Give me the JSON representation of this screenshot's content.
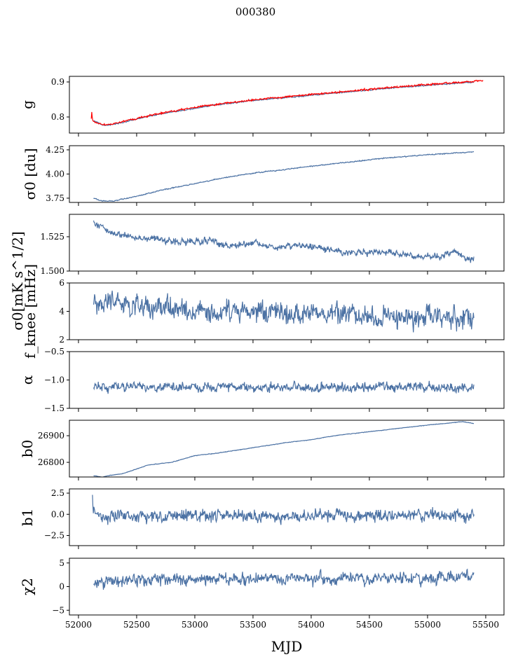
{
  "title": "000380",
  "chart_data": {
    "type": "line",
    "xlabel": "MJD",
    "xlim": [
      51922,
      55657
    ],
    "xticks": [
      52000,
      52500,
      53000,
      53500,
      54000,
      54500,
      55000,
      55500
    ],
    "xtick_labels": [
      "52000",
      "52500",
      "53000",
      "53500",
      "54000",
      "54500",
      "55000",
      "55500"
    ],
    "colors": {
      "main": "#4c72a4",
      "red": "#ff0000"
    },
    "panels": [
      {
        "ylabel": "g",
        "ylim": [
          0.754,
          0.916
        ],
        "yticks": [
          0.8,
          0.9
        ],
        "ytick_labels": [
          "0.8",
          "0.9"
        ],
        "series": [
          {
            "name": "g",
            "color": "#4c72a4",
            "noise": 0.001,
            "x": [
              52130,
              52200,
              52250,
              52400,
              52600,
              52800,
              53000,
              53200,
              53500,
              53800,
              54000,
              54300,
              54600,
              54900,
              55200,
              55400
            ],
            "y": [
              0.79,
              0.778,
              0.776,
              0.786,
              0.802,
              0.814,
              0.825,
              0.835,
              0.847,
              0.856,
              0.862,
              0.871,
              0.88,
              0.888,
              0.895,
              0.899
            ]
          },
          {
            "name": "g_ref",
            "color": "#ff0000",
            "noise": 0.0015,
            "x": [
              52110,
              52115,
              52120,
              52140,
              52200,
              52250,
              52400,
              52600,
              52800,
              53000,
              53200,
              53500,
              53800,
              54000,
              54300,
              54600,
              54900,
              55200,
              55400,
              55480
            ],
            "y": [
              0.795,
              0.82,
              0.79,
              0.785,
              0.779,
              0.777,
              0.788,
              0.804,
              0.816,
              0.827,
              0.837,
              0.849,
              0.858,
              0.864,
              0.873,
              0.882,
              0.89,
              0.897,
              0.902,
              0.904
            ]
          }
        ]
      },
      {
        "ylabel": "σ0 [du]",
        "ylim": [
          3.706,
          4.293
        ],
        "yticks": [
          3.75,
          4.0,
          4.25
        ],
        "ytick_labels": [
          "3.75",
          "4.00",
          "4.25"
        ],
        "series": [
          {
            "name": "sigma0_du",
            "color": "#4c72a4",
            "noise": 0.003,
            "x": [
              52130,
              52200,
              52300,
              52500,
              52700,
              53000,
              53200,
              53500,
              53800,
              54000,
              54300,
              54600,
              55000,
              55400
            ],
            "y": [
              3.75,
              3.72,
              3.72,
              3.77,
              3.83,
              3.9,
              3.95,
              4.01,
              4.05,
              4.08,
              4.12,
              4.16,
              4.2,
              4.23
            ]
          }
        ]
      },
      {
        "ylabel": "σ0[mK s^1/2]",
        "ylim": [
          1.5,
          1.5413
        ],
        "yticks": [
          1.5,
          1.525
        ],
        "ytick_labels": [
          "1.500",
          "1.525"
        ],
        "series": [
          {
            "name": "sigma0_mK",
            "color": "#4c72a4",
            "noise": 0.0015,
            "x": [
              52130,
              52200,
              52300,
              52500,
              52700,
              52900,
              53100,
              53300,
              53500,
              53700,
              53900,
              54100,
              54300,
              54500,
              54700,
              54900,
              55100,
              55250,
              55350,
              55400
            ],
            "y": [
              1.535,
              1.532,
              1.528,
              1.524,
              1.523,
              1.521,
              1.522,
              1.518,
              1.521,
              1.517,
              1.519,
              1.516,
              1.513,
              1.514,
              1.513,
              1.511,
              1.511,
              1.514,
              1.508,
              1.509
            ]
          }
        ]
      },
      {
        "ylabel": "f_knee [mHz]",
        "ylim": [
          2,
          6
        ],
        "yticks": [
          2,
          4,
          6
        ],
        "ytick_labels": [
          "2",
          "4",
          "6"
        ],
        "series": [
          {
            "name": "fknee",
            "color": "#4c72a4",
            "noise": 0.45,
            "x": [
              52130,
              52500,
              53000,
              53500,
              54000,
              54500,
              55000,
              55400
            ],
            "y": [
              4.7,
              4.4,
              4.1,
              4.0,
              3.8,
              3.7,
              3.6,
              3.4
            ]
          }
        ]
      },
      {
        "ylabel": "α",
        "ylim": [
          -1.5,
          -0.5
        ],
        "yticks": [
          -1.5,
          -1.0,
          -0.5
        ],
        "ytick_labels": [
          "−1.5",
          "−1.0",
          "−0.5"
        ],
        "series": [
          {
            "name": "alpha",
            "color": "#4c72a4",
            "noise": 0.05,
            "x": [
              52130,
              55400
            ],
            "y": [
              -1.13,
              -1.12
            ]
          }
        ]
      },
      {
        "ylabel": "b0",
        "ylim": [
          26745,
          26958
        ],
        "yticks": [
          26800,
          26900
        ],
        "ytick_labels": [
          "26800",
          "26900"
        ],
        "series": [
          {
            "name": "b0",
            "color": "#4c72a4",
            "noise": 0.6,
            "x": [
              52130,
              52200,
              52400,
              52600,
              52800,
              53000,
              53200,
              53500,
              53800,
              54000,
              54200,
              54500,
              54800,
              55000,
              55200,
              55300,
              55400
            ],
            "y": [
              26750,
              26745,
              26760,
              26790,
              26800,
              26825,
              26835,
              26855,
              26875,
              26885,
              26900,
              26915,
              26930,
              26940,
              26948,
              26953,
              26945
            ]
          }
        ]
      },
      {
        "ylabel": "b1",
        "ylim": [
          -3.7,
          3.0
        ],
        "yticks": [
          -2.5,
          0,
          2.5
        ],
        "ytick_labels": [
          "−2.5",
          "0.0",
          "2.5"
        ],
        "series": [
          {
            "name": "b1",
            "color": "#4c72a4",
            "noise": 0.45,
            "x": [
              52120,
              52125,
              52150,
              52300,
              55400
            ],
            "y": [
              2.5,
              0.5,
              -0.2,
              -0.2,
              -0.1
            ]
          }
        ]
      },
      {
        "ylabel": "χ2",
        "ylim": [
          -6,
          6
        ],
        "yticks": [
          -5,
          0,
          5
        ],
        "ytick_labels": [
          "−5",
          "0",
          "5"
        ],
        "series": [
          {
            "name": "chi2",
            "color": "#4c72a4",
            "noise": 0.8,
            "x": [
              52130,
              52500,
              53000,
              53500,
              54000,
              54500,
              55000,
              55400
            ],
            "y": [
              1.2,
              1.3,
              1.6,
              1.6,
              1.7,
              1.7,
              1.8,
              2.0
            ]
          }
        ]
      }
    ]
  }
}
